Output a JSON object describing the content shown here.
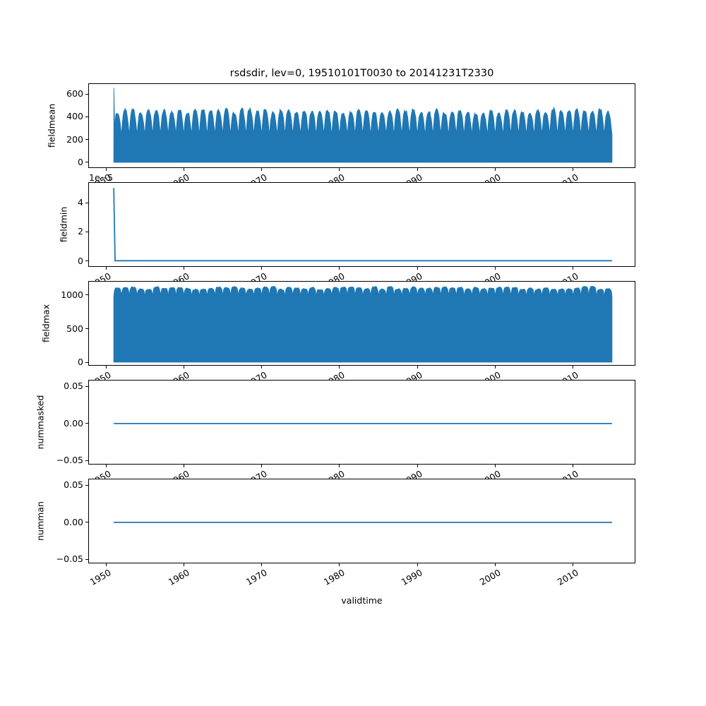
{
  "figure": {
    "title": "rsdsdir, lev=0, 19510101T0030 to 20141231T2330",
    "xlabel": "validtime",
    "background": "#ffffff",
    "line_color": "#1f77b4",
    "frame_color": "#000000",
    "text_color": "#000000"
  },
  "x_axis": {
    "range": [
      1947.73,
      2018.0
    ],
    "ticks": [
      1950,
      1960,
      1970,
      1980,
      1990,
      2000,
      2010
    ],
    "tick_labels": [
      "1950",
      "1960",
      "1970",
      "1980",
      "1990",
      "2000",
      "2010"
    ],
    "label": "validtime"
  },
  "chart_data": [
    {
      "ylabel": "fieldmean",
      "type": "area",
      "ylim": [
        -49.5,
        692.9
      ],
      "yticks": [
        0,
        200,
        400,
        600
      ],
      "ytick_labels": [
        "0",
        "200",
        "400",
        "600"
      ],
      "series": {
        "x_start": 1951.0,
        "x_end": 2015.0,
        "initial_spike_value": 655,
        "annual_trough": 248,
        "annual_peak_min": 428,
        "annual_peak_max": 472,
        "jitter": 22,
        "seed": 7,
        "annual_shape": [
          [
            0,
            0
          ],
          [
            0.05,
            0.22
          ],
          [
            0.12,
            0.52
          ],
          [
            0.2,
            0.78
          ],
          [
            0.28,
            0.92
          ],
          [
            0.36,
            0.985
          ],
          [
            0.45,
            1
          ],
          [
            0.54,
            0.99
          ],
          [
            0.62,
            0.95
          ],
          [
            0.7,
            0.85
          ],
          [
            0.78,
            0.68
          ],
          [
            0.86,
            0.45
          ],
          [
            0.93,
            0.2
          ],
          [
            1,
            0
          ]
        ]
      }
    },
    {
      "ylabel": "fieldmin",
      "type": "line",
      "offset_text": "1e−5",
      "ylim": [
        -0.39,
        5.4
      ],
      "yticks": [
        0,
        2,
        4
      ],
      "ytick_labels": [
        "0",
        "2",
        "4"
      ],
      "series": {
        "points": [
          [
            1951,
            5.0
          ],
          [
            1951.18,
            0.03
          ],
          [
            2015,
            0.03
          ]
        ],
        "line_width": 1.8
      }
    },
    {
      "ylabel": "fieldmax",
      "type": "area",
      "ylim": [
        -52.6,
        1210.5
      ],
      "yticks": [
        0,
        500,
        1000
      ],
      "ytick_labels": [
        "0",
        "500",
        "1000"
      ],
      "series": {
        "x_start": 1951.0,
        "x_end": 2015.0,
        "initial_spike_value": null,
        "annual_trough": 975,
        "annual_peak_min": 1085,
        "annual_peak_max": 1130,
        "jitter": 14,
        "seed": 11,
        "annual_shape": [
          [
            0,
            0
          ],
          [
            0.05,
            0.45
          ],
          [
            0.11,
            0.75
          ],
          [
            0.18,
            0.9
          ],
          [
            0.27,
            0.97
          ],
          [
            0.38,
            1
          ],
          [
            0.5,
            1
          ],
          [
            0.62,
            1
          ],
          [
            0.73,
            0.97
          ],
          [
            0.82,
            0.9
          ],
          [
            0.89,
            0.75
          ],
          [
            0.95,
            0.45
          ],
          [
            1,
            0
          ]
        ]
      }
    },
    {
      "ylabel": "nummasked",
      "type": "line",
      "ylim": [
        -0.0553,
        0.059
      ],
      "yticks": [
        -0.05,
        0,
        0.05
      ],
      "ytick_labels": [
        "−0.05",
        "0.00",
        "0.05"
      ],
      "series": {
        "points": [
          [
            1951,
            0
          ],
          [
            2015,
            0
          ]
        ],
        "line_width": 1.8
      }
    },
    {
      "ylabel": "numman",
      "type": "line",
      "ylim": [
        -0.0553,
        0.059
      ],
      "yticks": [
        -0.05,
        0,
        0.05
      ],
      "ytick_labels": [
        "−0.05",
        "0.00",
        "0.05"
      ],
      "series": {
        "points": [
          [
            1951,
            0
          ],
          [
            2015,
            0
          ]
        ],
        "line_width": 1.8
      }
    }
  ]
}
